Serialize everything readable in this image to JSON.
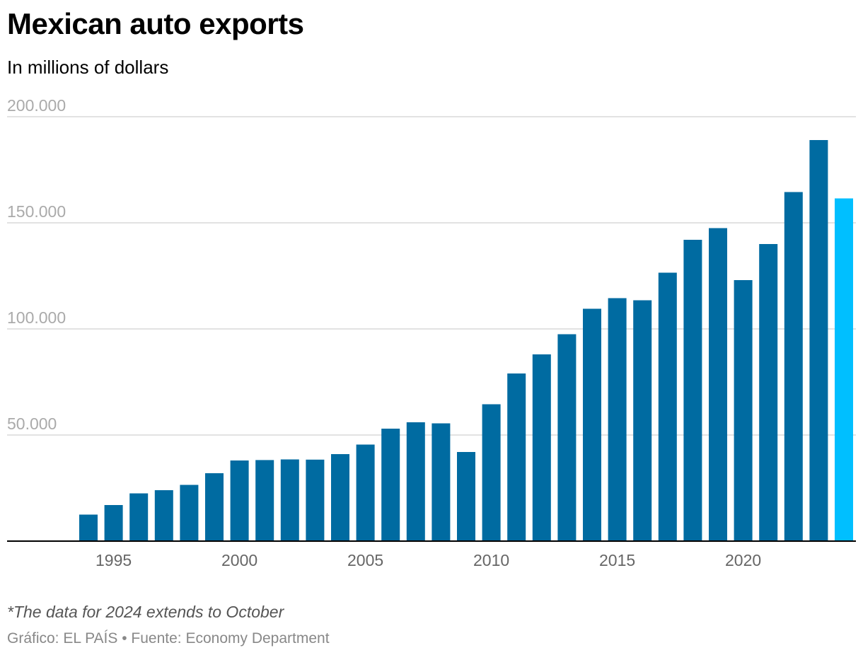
{
  "header": {
    "title": "Mexican auto exports",
    "subtitle": "In millions of dollars"
  },
  "footer": {
    "note": "*The data for 2024 extends to October",
    "source": "Gráfico: EL PAÍS • Fuente: Economy Department"
  },
  "colors": {
    "bar": "#006ba1",
    "highlight_bar": "#00bfff",
    "grid": "#d9d9d9",
    "baseline": "#000000"
  },
  "chart_data": {
    "type": "bar",
    "title": "Mexican auto exports",
    "subtitle": "In millions of dollars",
    "x": [
      1994,
      1995,
      1996,
      1997,
      1998,
      1999,
      2000,
      2001,
      2002,
      2003,
      2004,
      2005,
      2006,
      2007,
      2008,
      2009,
      2010,
      2011,
      2012,
      2013,
      2014,
      2015,
      2016,
      2017,
      2018,
      2019,
      2020,
      2021,
      2022,
      2023,
      2024
    ],
    "values": [
      12500,
      17000,
      22500,
      24000,
      26500,
      32000,
      38000,
      38200,
      38500,
      38400,
      41000,
      45500,
      53000,
      56000,
      55500,
      42000,
      64500,
      79000,
      88000,
      97500,
      109500,
      114500,
      113500,
      126500,
      142000,
      147500,
      123000,
      140000,
      164500,
      189000,
      161500
    ],
    "highlight": [
      2024
    ],
    "ylim": [
      0,
      200000
    ],
    "yticks": [
      50000,
      100000,
      150000,
      200000
    ],
    "ytick_labels": [
      "50.000",
      "100.000",
      "150.000",
      "200.000"
    ],
    "xticks": [
      1995,
      2000,
      2005,
      2010,
      2015,
      2020
    ],
    "xtick_labels": [
      "1995",
      "2000",
      "2005",
      "2010",
      "2015",
      "2020"
    ],
    "grid": true
  }
}
